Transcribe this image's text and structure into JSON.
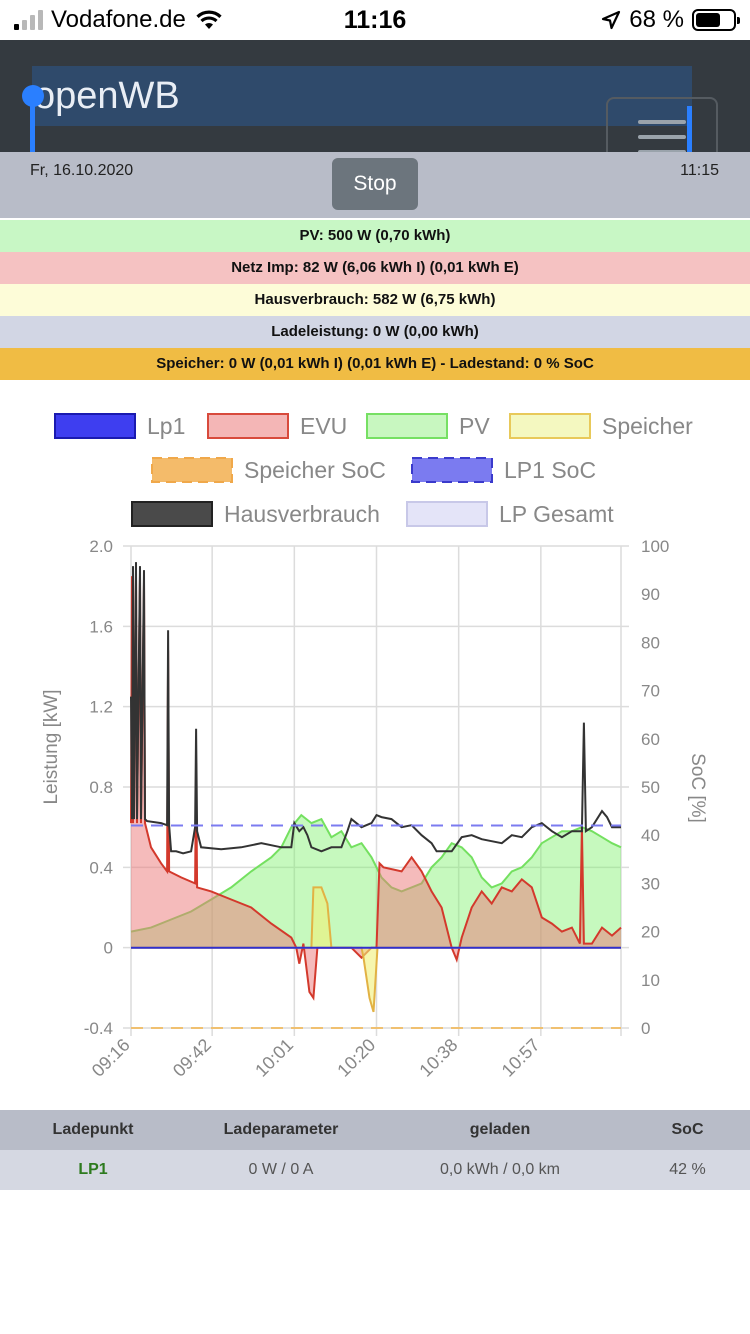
{
  "status_bar": {
    "carrier": "Vodafone.de",
    "time": "11:16",
    "battery_percent": "68 %",
    "battery_level": 0.68,
    "icons": [
      "signal-icon",
      "wifi-icon",
      "location-arrow-icon",
      "battery-icon"
    ]
  },
  "navbar": {
    "brand": "openWB",
    "menu_icon": "hamburger-icon",
    "bg_color": "#343a40"
  },
  "header": {
    "date": "Fr, 16.10.2020",
    "time": "11:15",
    "stop_label": "Stop"
  },
  "info": {
    "pv": "PV: 500 W (0,70 kWh)",
    "netz": "Netz Imp: 82 W (6,06 kWh I) (0,01 kWh E)",
    "haus": "Hausverbrauch: 582 W (6,75 kWh)",
    "lade": "Ladeleistung: 0 W (0,00 kWh)",
    "speicher": "Speicher: 0 W (0,01 kWh I) (0,01 kWh E) - Ladestand: 0 % SoC",
    "colors": {
      "pv": "#c8f7c5",
      "netz": "#f5c2c2",
      "haus": "#fdfcd8",
      "lade": "#d2d6e4",
      "speicher": "#f0bc44"
    }
  },
  "chart_data": {
    "type": "line",
    "ylabel": "Leistung [kW]",
    "y2label": "SoC [%]",
    "ylim": [
      -0.4,
      2.0
    ],
    "y_ticks": [
      "2.0",
      "1.6",
      "1.2",
      "0.8",
      "0.4",
      "0",
      "-0.4"
    ],
    "y2lim": [
      0,
      100
    ],
    "y2_ticks": [
      "100",
      "90",
      "80",
      "70",
      "60",
      "50",
      "40",
      "30",
      "20",
      "10",
      "0"
    ],
    "x_ticks": [
      "09:16",
      "09:42",
      "10:01",
      "10:20",
      "10:38",
      "10:57"
    ],
    "legend": [
      {
        "name": "Lp1",
        "color": "#3e3ef0",
        "border": "#1a1ab0",
        "dashed": false
      },
      {
        "name": "EVU",
        "color": "#f4b6b6",
        "border": "#d84a3c",
        "dashed": false
      },
      {
        "name": "PV",
        "color": "#c8f7c0",
        "border": "#76e063",
        "dashed": false
      },
      {
        "name": "Speicher",
        "color": "#f4f8c0",
        "border": "#e8c95a",
        "dashed": false
      },
      {
        "name": "Speicher SoC",
        "color": "#f4bb6a",
        "border": "#f0a84a",
        "dashed": true
      },
      {
        "name": "LP1 SoC",
        "color": "#7b7bf0",
        "border": "#3a3acc",
        "dashed": true
      },
      {
        "name": "Hausverbrauch",
        "color": "#4a4a4a",
        "border": "#222222",
        "dashed": false
      },
      {
        "name": "LP Gesamt",
        "color": "#e4e4f8",
        "border": "#c8c8e8",
        "dashed": false
      }
    ],
    "x": [
      0,
      1,
      2,
      3,
      4,
      5,
      6,
      7,
      8,
      9,
      10,
      11,
      12,
      13,
      14,
      15,
      16,
      17,
      18,
      19,
      20,
      21,
      22,
      23,
      24,
      25,
      26,
      27,
      28,
      29,
      30,
      31,
      32,
      33,
      34,
      35,
      36,
      37,
      38,
      39,
      40,
      41,
      42,
      43,
      44,
      45,
      46,
      47,
      48,
      49,
      50,
      51,
      52,
      53,
      54,
      55,
      56,
      57,
      58,
      59,
      60,
      61,
      62,
      63,
      64,
      65,
      66,
      67,
      68,
      69,
      70,
      71,
      72,
      73,
      74,
      75,
      76,
      77,
      78,
      79,
      80,
      81,
      82,
      83,
      84,
      85,
      86,
      87,
      88,
      89,
      90,
      91,
      92,
      93,
      94,
      95,
      96,
      97,
      98,
      99,
      100,
      101,
      102,
      103,
      104,
      105,
      106,
      107,
      108,
      109,
      110,
      111,
      112,
      113,
      114,
      115,
      116,
      117,
      118,
      119,
      120,
      121,
      122,
      123,
      124,
      125,
      126,
      127,
      128,
      129,
      130,
      131,
      132,
      133,
      134,
      135,
      136,
      137,
      138,
      139,
      140,
      141,
      142,
      143,
      144,
      145,
      146,
      147,
      148,
      149,
      150,
      151,
      152,
      153,
      154,
      155,
      156,
      157,
      158,
      159,
      160,
      161,
      162,
      163,
      164,
      165,
      166,
      167,
      168,
      169,
      170,
      171,
      172,
      173,
      174,
      175,
      176,
      177,
      178,
      179,
      180,
      181,
      182,
      183,
      184,
      185,
      186,
      187,
      188,
      189,
      190,
      191,
      192,
      193,
      194,
      195,
      196,
      197,
      198,
      199,
      200,
      201,
      202,
      203,
      204,
      205,
      206,
      207,
      208,
      209,
      210,
      211,
      212,
      213,
      214,
      215,
      216,
      217,
      218,
      219,
      220,
      221,
      222,
      223,
      224,
      225,
      226,
      227,
      228,
      229,
      230,
      231,
      232,
      233,
      234,
      235,
      236,
      237,
      238,
      239,
      240,
      241,
      242,
      243,
      244,
      245,
      246,
      247,
      248,
      249,
      250,
      251,
      252,
      253,
      254,
      255,
      256,
      257,
      258,
      259,
      260,
      261,
      262,
      263,
      264,
      265,
      266,
      267,
      268,
      269,
      270,
      271,
      272,
      273,
      274,
      275,
      276,
      277,
      278,
      279,
      280,
      281,
      282,
      283,
      284,
      285,
      286,
      287,
      288,
      289,
      290,
      291,
      292,
      293,
      294,
      295,
      296,
      297,
      298,
      299,
      300,
      301,
      302,
      303,
      304,
      305,
      306,
      307,
      308,
      309,
      310,
      311,
      312,
      313,
      314,
      315,
      316,
      317,
      318,
      319,
      320,
      321,
      322,
      323,
      324,
      325,
      326,
      327,
      328,
      329,
      330,
      331,
      332,
      333,
      334,
      335,
      336,
      337,
      338,
      339,
      340,
      341,
      342,
      343,
      344,
      345,
      346,
      347,
      348,
      349,
      350,
      351,
      352,
      353,
      354,
      355,
      356,
      357,
      358,
      359,
      360,
      361,
      362,
      363,
      364,
      365,
      366,
      367,
      368,
      369,
      370,
      371,
      372,
      373,
      374,
      375,
      376,
      377,
      378,
      379,
      380,
      381,
      382,
      383,
      384,
      385,
      386,
      387,
      388,
      389,
      390,
      391,
      392,
      393,
      394,
      395,
      396,
      397,
      398,
      399,
      400,
      401,
      402,
      403,
      404,
      405,
      406,
      407,
      408,
      409,
      410,
      411,
      412,
      413,
      414,
      415,
      416,
      417,
      418,
      419,
      420,
      421,
      422,
      423,
      424,
      425,
      426,
      427,
      428,
      429,
      430,
      431,
      432,
      433,
      434,
      435,
      436,
      437,
      438,
      439,
      440,
      441,
      442,
      443,
      444,
      445,
      446,
      447,
      448,
      449,
      450,
      451,
      452,
      453,
      454,
      455,
      456,
      457,
      458,
      459,
      460,
      461,
      462,
      463,
      464,
      465,
      466,
      467,
      468,
      469,
      470,
      471,
      472,
      473,
      474,
      475,
      476,
      477,
      478,
      479,
      480,
      481,
      482,
      483,
      484,
      485,
      486,
      487,
      488,
      489
    ],
    "series_points": {
      "hausverbrauch": [
        [
          0,
          1.25
        ],
        [
          1,
          0.64
        ],
        [
          2,
          1.9
        ],
        [
          3,
          0.64
        ],
        [
          5,
          1.92
        ],
        [
          6,
          0.64
        ],
        [
          9,
          1.9
        ],
        [
          10,
          0.64
        ],
        [
          13,
          1.88
        ],
        [
          14,
          0.64
        ],
        [
          16,
          0.63
        ],
        [
          30,
          0.62
        ],
        [
          36,
          0.61
        ],
        [
          37,
          1.58
        ],
        [
          38,
          0.61
        ],
        [
          40,
          0.48
        ],
        [
          45,
          0.48
        ],
        [
          52,
          0.47
        ],
        [
          60,
          0.48
        ],
        [
          64,
          0.6
        ],
        [
          65,
          1.09
        ],
        [
          66,
          0.58
        ],
        [
          70,
          0.5
        ],
        [
          90,
          0.49
        ],
        [
          110,
          0.5
        ],
        [
          130,
          0.52
        ],
        [
          150,
          0.5
        ],
        [
          160,
          0.5
        ],
        [
          163,
          0.62
        ],
        [
          168,
          0.58
        ],
        [
          172,
          0.6
        ],
        [
          176,
          0.56
        ],
        [
          180,
          0.5
        ],
        [
          190,
          0.48
        ],
        [
          200,
          0.5
        ],
        [
          210,
          0.5
        ],
        [
          216,
          0.58
        ],
        [
          220,
          0.64
        ],
        [
          230,
          0.6
        ],
        [
          240,
          0.62
        ],
        [
          245,
          0.66
        ],
        [
          250,
          0.65
        ],
        [
          260,
          0.64
        ],
        [
          270,
          0.6
        ],
        [
          280,
          0.61
        ],
        [
          290,
          0.56
        ],
        [
          300,
          0.52
        ],
        [
          305,
          0.48
        ],
        [
          320,
          0.48
        ],
        [
          330,
          0.55
        ],
        [
          340,
          0.56
        ],
        [
          350,
          0.54
        ],
        [
          360,
          0.53
        ],
        [
          370,
          0.52
        ],
        [
          380,
          0.56
        ],
        [
          390,
          0.55
        ],
        [
          400,
          0.6
        ],
        [
          410,
          0.62
        ],
        [
          420,
          0.58
        ],
        [
          430,
          0.55
        ],
        [
          440,
          0.58
        ],
        [
          450,
          0.58
        ],
        [
          452,
          1.12
        ],
        [
          454,
          0.58
        ],
        [
          460,
          0.6
        ],
        [
          470,
          0.68
        ],
        [
          475,
          0.65
        ],
        [
          480,
          0.6
        ],
        [
          489,
          0.6
        ]
      ],
      "evu": [
        [
          0,
          0.62
        ],
        [
          1,
          1.85
        ],
        [
          2,
          0.62
        ],
        [
          5,
          1.85
        ],
        [
          6,
          0.62
        ],
        [
          9,
          1.85
        ],
        [
          10,
          0.62
        ],
        [
          13,
          1.82
        ],
        [
          14,
          0.62
        ],
        [
          20,
          0.5
        ],
        [
          30,
          0.42
        ],
        [
          36,
          0.38
        ],
        [
          37,
          1.48
        ],
        [
          38,
          0.38
        ],
        [
          50,
          0.35
        ],
        [
          64,
          0.32
        ],
        [
          65,
          0.92
        ],
        [
          66,
          0.3
        ],
        [
          80,
          0.28
        ],
        [
          100,
          0.24
        ],
        [
          120,
          0.2
        ],
        [
          140,
          0.12
        ],
        [
          160,
          0.05
        ],
        [
          165,
          0.0
        ],
        [
          168,
          -0.08
        ],
        [
          172,
          0.02
        ],
        [
          178,
          -0.22
        ],
        [
          182,
          -0.25
        ],
        [
          186,
          0.0
        ],
        [
          200,
          0.0
        ],
        [
          220,
          0.0
        ],
        [
          230,
          -0.05
        ],
        [
          240,
          0.0
        ],
        [
          245,
          0.0
        ],
        [
          248,
          0.42
        ],
        [
          252,
          0.4
        ],
        [
          270,
          0.38
        ],
        [
          280,
          0.45
        ],
        [
          290,
          0.38
        ],
        [
          300,
          0.28
        ],
        [
          310,
          0.2
        ],
        [
          320,
          0.0
        ],
        [
          325,
          -0.06
        ],
        [
          330,
          0.05
        ],
        [
          340,
          0.2
        ],
        [
          350,
          0.28
        ],
        [
          360,
          0.22
        ],
        [
          370,
          0.3
        ],
        [
          380,
          0.28
        ],
        [
          390,
          0.34
        ],
        [
          400,
          0.3
        ],
        [
          410,
          0.15
        ],
        [
          420,
          0.12
        ],
        [
          430,
          0.08
        ],
        [
          440,
          0.1
        ],
        [
          448,
          0.02
        ],
        [
          450,
          0.6
        ],
        [
          452,
          0.02
        ],
        [
          460,
          0.02
        ],
        [
          470,
          0.1
        ],
        [
          480,
          0.06
        ],
        [
          489,
          0.1
        ]
      ],
      "pv": [
        [
          0,
          0.08
        ],
        [
          20,
          0.1
        ],
        [
          40,
          0.14
        ],
        [
          60,
          0.18
        ],
        [
          80,
          0.24
        ],
        [
          100,
          0.3
        ],
        [
          120,
          0.38
        ],
        [
          140,
          0.45
        ],
        [
          150,
          0.5
        ],
        [
          160,
          0.6
        ],
        [
          170,
          0.66
        ],
        [
          180,
          0.62
        ],
        [
          190,
          0.64
        ],
        [
          200,
          0.55
        ],
        [
          210,
          0.58
        ],
        [
          220,
          0.5
        ],
        [
          230,
          0.52
        ],
        [
          240,
          0.45
        ],
        [
          250,
          0.35
        ],
        [
          260,
          0.3
        ],
        [
          270,
          0.28
        ],
        [
          280,
          0.3
        ],
        [
          290,
          0.32
        ],
        [
          300,
          0.4
        ],
        [
          310,
          0.45
        ],
        [
          320,
          0.52
        ],
        [
          330,
          0.5
        ],
        [
          340,
          0.45
        ],
        [
          350,
          0.35
        ],
        [
          360,
          0.3
        ],
        [
          370,
          0.32
        ],
        [
          380,
          0.38
        ],
        [
          390,
          0.4
        ],
        [
          400,
          0.45
        ],
        [
          410,
          0.52
        ],
        [
          420,
          0.55
        ],
        [
          430,
          0.58
        ],
        [
          440,
          0.58
        ],
        [
          450,
          0.6
        ],
        [
          460,
          0.58
        ],
        [
          470,
          0.55
        ],
        [
          480,
          0.52
        ],
        [
          489,
          0.5
        ]
      ],
      "speicher": [
        [
          0,
          0
        ],
        [
          180,
          0
        ],
        [
          182,
          0.3
        ],
        [
          190,
          0.3
        ],
        [
          196,
          0.22
        ],
        [
          200,
          0.0
        ],
        [
          230,
          0.0
        ],
        [
          232,
          -0.05
        ],
        [
          238,
          -0.25
        ],
        [
          242,
          -0.32
        ],
        [
          246,
          0.0
        ],
        [
          489,
          0.0
        ]
      ],
      "lp1": [
        [
          0,
          0
        ],
        [
          489,
          0
        ]
      ],
      "lp1_soc": [
        [
          0,
          42
        ],
        [
          489,
          42
        ]
      ]
    },
    "grid": true,
    "legend_position": "top"
  },
  "table": {
    "headers": [
      "Ladepunkt",
      "Ladeparameter",
      "geladen",
      "SoC"
    ],
    "rows": [
      {
        "lp": "LP1",
        "param": "0 W / 0 A",
        "geladen": "0,0 kWh / 0,0 km",
        "soc": "42 %"
      }
    ]
  }
}
